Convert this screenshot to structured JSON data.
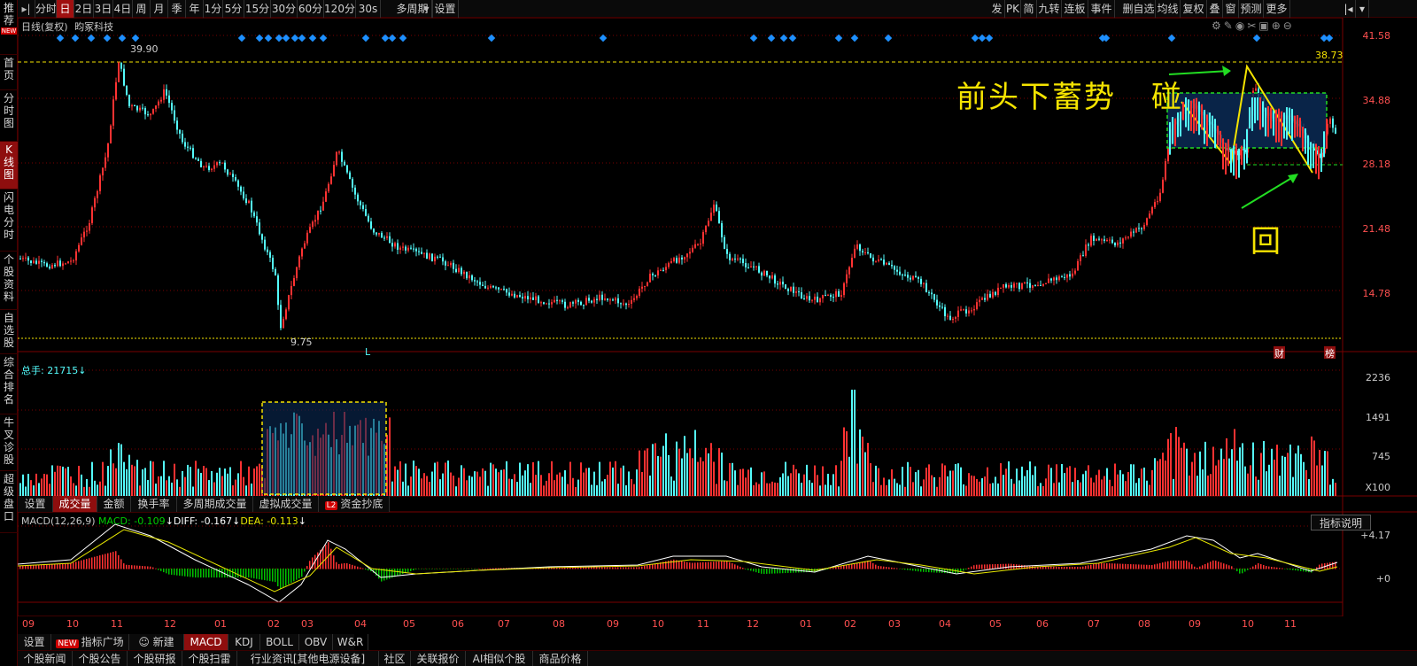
{
  "toolbar": {
    "left_items": [
      "分时",
      "日",
      "2日",
      "3日",
      "4日",
      "周",
      "月",
      "季",
      "年",
      "1分",
      "5分",
      "15分",
      "30分",
      "60分",
      "120分",
      "30s",
      "多周期",
      "设置"
    ],
    "selected": "日",
    "right_items": [
      "发",
      "PK",
      "简",
      "九转",
      "连板",
      "事件",
      "删自选",
      "均线",
      "复权",
      "叠",
      "窗",
      "预测",
      "更多"
    ]
  },
  "sidebar": {
    "items": [
      {
        "label": "推荐",
        "badge": "NEW"
      },
      {
        "label": "首页"
      },
      {
        "label": "分时图"
      },
      {
        "label": "K线图",
        "selected": true
      },
      {
        "label": "闪电分时"
      },
      {
        "label": "个股资料"
      },
      {
        "label": "自选股"
      },
      {
        "label": "综合排名"
      },
      {
        "label": "牛叉诊股"
      },
      {
        "label": "超级盘口"
      }
    ]
  },
  "main_chart": {
    "title": "日线(复权)",
    "stock_name": "昀冢科技",
    "high_label": "39.90",
    "low_label": "9.75",
    "ref_line_label": "38.73",
    "low_marker": "L",
    "right_markers": [
      "财",
      "榜"
    ],
    "y_labels": [
      "41.58",
      "34.88",
      "28.18",
      "21.48",
      "14.78"
    ],
    "annotations": {
      "pattern": "前头下蓄势",
      "touch": "碰",
      "back": "回"
    }
  },
  "volume_panel": {
    "total_label": "总手: 21715",
    "y_labels": [
      "2236",
      "1491",
      "745",
      "X100"
    ],
    "tabs": [
      "设置",
      "成交量",
      "金额",
      "换手率",
      "多周期成交量",
      "虚拟成交量",
      "资金抄底"
    ],
    "selected_tab": "成交量",
    "l2_badge": "L2"
  },
  "macd_panel": {
    "header_name": "MACD(12,26,9)",
    "macd_value": "MACD: -0.109",
    "diff_value": "DIFF: -0.167",
    "dea_value": "DEA: -0.113",
    "explain_button": "指标说明",
    "y_labels": [
      "+4.17",
      "+0"
    ]
  },
  "x_axis": {
    "labels": [
      "09",
      "10",
      "11",
      "12",
      "01",
      "02",
      "03",
      "04",
      "05",
      "06",
      "07",
      "08",
      "09",
      "10",
      "11",
      "12",
      "01",
      "02",
      "03",
      "04",
      "05",
      "06",
      "07",
      "08",
      "09",
      "10",
      "11"
    ]
  },
  "indicator_tabs": {
    "items": [
      "设置",
      "指标广场",
      "新建",
      "MACD",
      "KDJ",
      "BOLL",
      "OBV",
      "W&R"
    ],
    "selected": "MACD",
    "new_badge": "NEW"
  },
  "news_tabs": {
    "items": [
      "个股新闻",
      "个股公告",
      "个股研报",
      "个股扫雷",
      "行业资讯[其他电源设备]",
      "社区",
      "关联报价",
      "AI相似个股",
      "商品价格"
    ]
  },
  "colors": {
    "up": "#ff3232",
    "down": "#54fcfc",
    "background": "#000000",
    "grid": "#7a0000",
    "annotation": "#f5e400",
    "box_green": "#22dd22",
    "box_yellow": "#f5e400",
    "diff_line": "#ffffff",
    "dea_line": "#e8e800",
    "macd_neg": "#00c000"
  }
}
